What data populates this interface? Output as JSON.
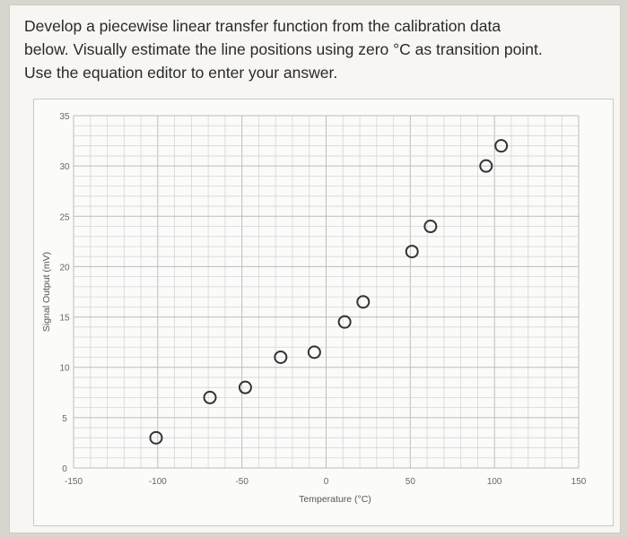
{
  "question": {
    "lines": [
      "Develop a piecewise linear transfer function from the calibration data",
      "below. Visually estimate the line positions using zero °C as transition point.",
      "Use the equation editor to enter your answer."
    ]
  },
  "chart_data": {
    "type": "scatter",
    "title": "",
    "xlabel": "Temperature (°C)",
    "ylabel": "Signal Output (mV)",
    "xlim": [
      -150,
      150
    ],
    "ylim": [
      0,
      35
    ],
    "x_ticks": [
      -150,
      -100,
      -50,
      0,
      50,
      100,
      150
    ],
    "y_ticks": [
      0,
      5,
      10,
      15,
      20,
      25,
      30,
      35
    ],
    "grid": true,
    "series": [
      {
        "points": [
          {
            "x": -101,
            "y": 3
          },
          {
            "x": -69,
            "y": 7
          },
          {
            "x": -48,
            "y": 8
          },
          {
            "x": -27,
            "y": 11
          },
          {
            "x": -7,
            "y": 11.5
          },
          {
            "x": 11,
            "y": 14.5
          },
          {
            "x": 22,
            "y": 16.5
          },
          {
            "x": 51,
            "y": 21.5
          },
          {
            "x": 62,
            "y": 24
          },
          {
            "x": 95,
            "y": 30
          },
          {
            "x": 104,
            "y": 32
          }
        ]
      }
    ]
  }
}
